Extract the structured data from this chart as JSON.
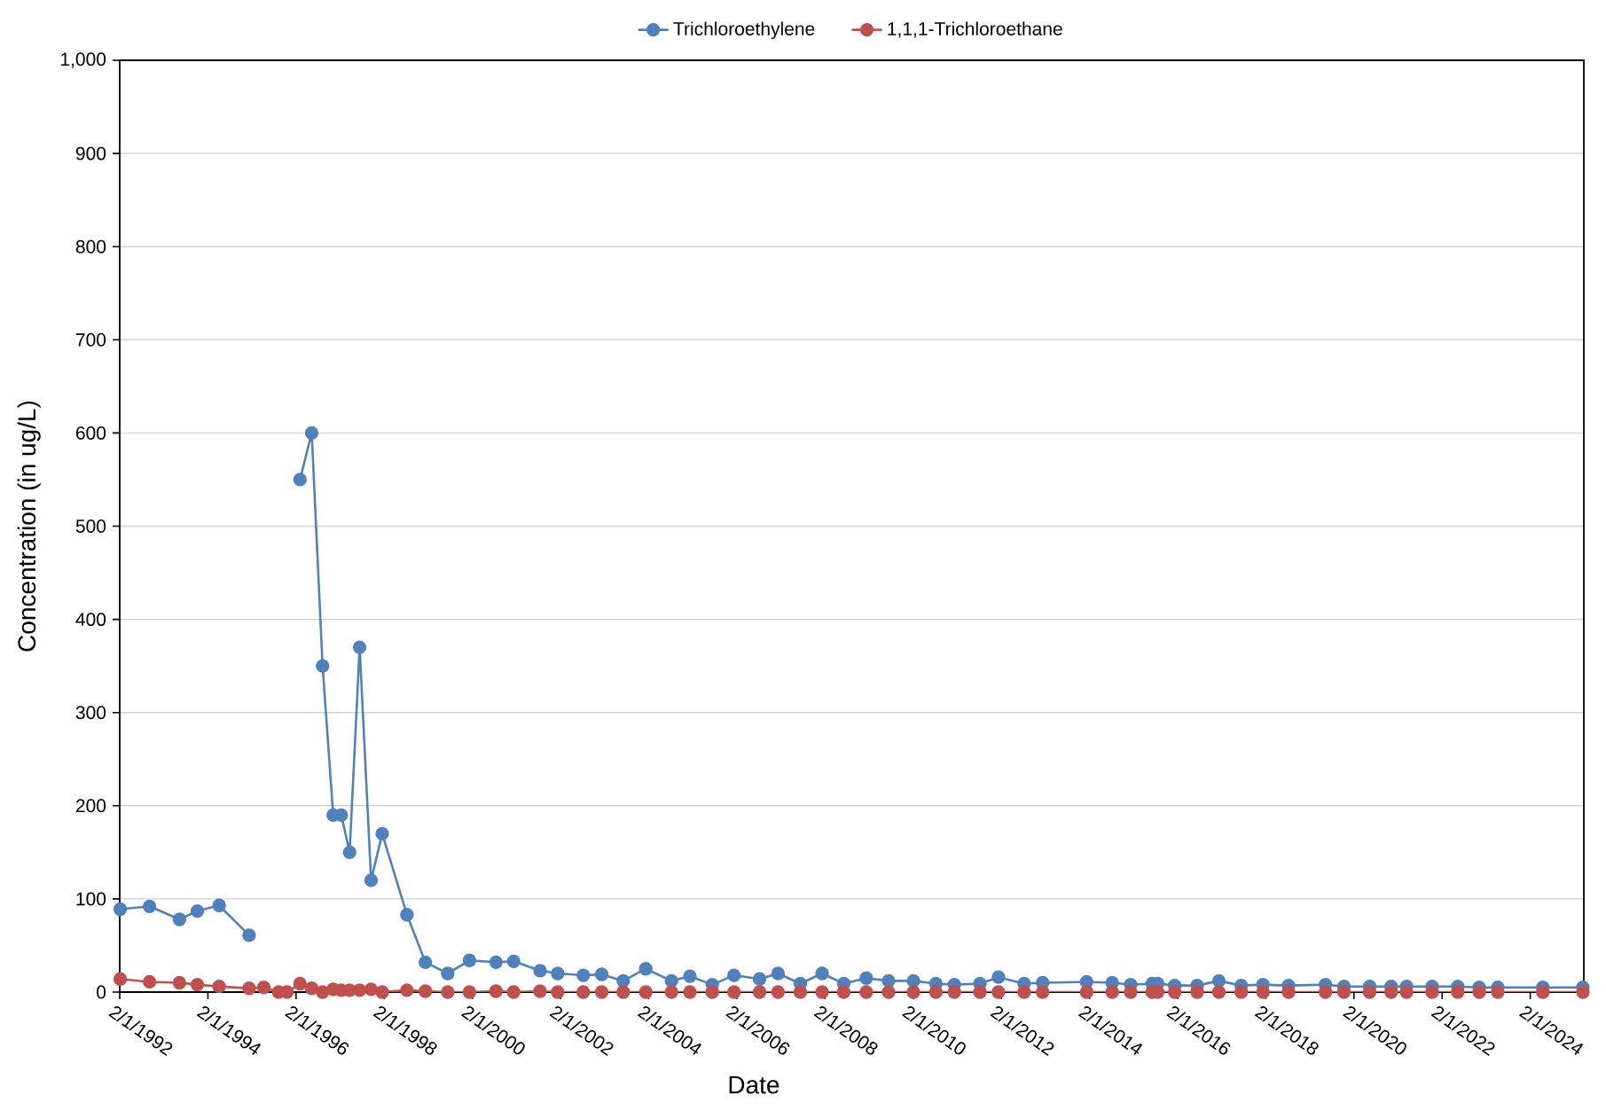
{
  "chart_data": {
    "type": "line",
    "xlabel": "Date",
    "ylabel": "Concentration (in ug/L)",
    "xlim": [
      "1992-02-01",
      "2025-04-20"
    ],
    "xticks": [
      {
        "value": "1992-02-01",
        "label": "2/1/1992"
      },
      {
        "value": "1994-02-01",
        "label": "2/1/1994"
      },
      {
        "value": "1996-02-01",
        "label": "2/1/1996"
      },
      {
        "value": "1998-02-01",
        "label": "2/1/1998"
      },
      {
        "value": "2000-02-01",
        "label": "2/1/2000"
      },
      {
        "value": "2002-02-01",
        "label": "2/1/2002"
      },
      {
        "value": "2004-02-01",
        "label": "2/1/2004"
      },
      {
        "value": "2006-02-01",
        "label": "2/1/2006"
      },
      {
        "value": "2008-02-01",
        "label": "2/1/2008"
      },
      {
        "value": "2010-02-01",
        "label": "2/1/2010"
      },
      {
        "value": "2012-02-01",
        "label": "2/1/2012"
      },
      {
        "value": "2014-02-01",
        "label": "2/1/2014"
      },
      {
        "value": "2016-02-01",
        "label": "2/1/2016"
      },
      {
        "value": "2018-02-01",
        "label": "2/1/2018"
      },
      {
        "value": "2020-02-01",
        "label": "2/1/2020"
      },
      {
        "value": "2022-02-01",
        "label": "2/1/2022"
      },
      {
        "value": "2024-02-01",
        "label": "2/1/2024"
      }
    ],
    "ylim": [
      0,
      1000
    ],
    "yticks": [
      0,
      100,
      200,
      300,
      400,
      500,
      600,
      700,
      800,
      900,
      {
        "value": 1000,
        "label": "1,000"
      }
    ],
    "grid": "y",
    "legend": "top",
    "marker": "circle",
    "line_style": "solid",
    "series": [
      {
        "name": "Trichloroethylene",
        "color": "#4f81bd",
        "x": [
          "1992-02-05",
          "1992-10-05",
          "1993-06-10",
          "1993-11-05",
          "1994-05-05",
          "1995-01-08",
          "1995-01-20",
          "1996-02-15",
          "1996-03-05",
          "1996-06-10",
          "1996-09-08",
          "1996-12-05",
          "1997-02-10",
          "1997-04-20",
          "1997-07-12",
          "1997-10-15",
          "1998-01-15",
          "1998-08-08",
          "1999-01-08",
          "1999-07-12",
          "2000-01-08",
          "2000-08-15",
          "2001-01-08",
          "2001-08-15",
          "2002-01-08",
          "2002-08-08",
          "2003-01-08",
          "2003-07-05",
          "2004-01-08",
          "2004-08-08",
          "2005-01-08",
          "2005-07-12",
          "2006-01-08",
          "2006-08-08",
          "2007-01-08",
          "2007-07-12",
          "2008-01-08",
          "2008-07-05",
          "2009-01-08",
          "2009-07-12",
          "2010-02-03",
          "2010-08-08",
          "2011-01-08",
          "2011-08-08",
          "2012-01-08",
          "2012-08-08",
          "2013-01-08",
          "2014-01-08",
          "2014-08-08",
          "2015-01-08",
          "2015-07-05",
          "2015-08-20",
          "2016-01-08",
          "2016-07-12",
          "2017-01-08",
          "2017-07-12",
          "2018-01-08",
          "2018-08-08",
          "2019-06-10",
          "2019-11-10",
          "2020-06-10",
          "2020-12-05",
          "2021-04-12",
          "2021-11-10",
          "2022-06-10",
          "2022-12-05",
          "2023-05-08",
          "2024-05-15",
          "2025-04-12"
        ],
        "values": [
          89,
          92,
          78,
          87,
          93,
          61,
          null,
          null,
          550,
          600,
          350,
          190,
          190,
          150,
          370,
          120,
          170,
          83,
          32,
          20,
          34,
          32,
          33,
          23,
          20,
          18,
          19,
          12,
          25,
          12,
          17,
          8,
          18,
          14,
          20,
          9,
          20,
          9,
          15,
          12,
          12,
          9,
          8,
          9,
          16,
          9,
          10,
          11,
          10,
          8,
          9,
          9,
          7,
          7,
          12,
          7,
          8,
          7,
          8,
          6,
          6,
          6,
          6,
          6,
          6,
          5,
          5,
          5,
          5
        ]
      },
      {
        "name": "1,1,1-Trichloroethane",
        "color": "#c0504d",
        "x": [
          "1992-02-05",
          "1992-10-05",
          "1993-06-10",
          "1993-11-05",
          "1994-05-05",
          "1995-01-08",
          "1995-05-10",
          "1995-09-10",
          "1995-11-18",
          "1996-03-05",
          "1996-06-10",
          "1996-09-08",
          "1996-12-05",
          "1997-02-10",
          "1997-04-20",
          "1997-07-12",
          "1997-10-15",
          "1998-01-15",
          "1998-08-08",
          "1999-01-08",
          "1999-07-12",
          "2000-01-08",
          "2000-08-15",
          "2001-01-08",
          "2001-08-15",
          "2002-01-08",
          "2002-08-08",
          "2003-01-08",
          "2003-07-05",
          "2004-01-08",
          "2004-08-08",
          "2005-01-08",
          "2005-07-12",
          "2006-01-08",
          "2006-08-08",
          "2007-01-08",
          "2007-07-12",
          "2008-01-08",
          "2008-07-05",
          "2009-01-08",
          "2009-07-12",
          "2010-02-03",
          "2010-08-08",
          "2011-01-08",
          "2011-08-08",
          "2012-01-08",
          "2012-08-08",
          "2013-01-08",
          "2014-01-08",
          "2014-08-08",
          "2015-01-08",
          "2015-07-05",
          "2015-08-20",
          "2016-01-08",
          "2016-07-12",
          "2017-01-08",
          "2017-07-12",
          "2018-01-08",
          "2018-08-08",
          "2019-06-10",
          "2019-11-10",
          "2020-06-10",
          "2020-12-05",
          "2021-04-12",
          "2021-11-10",
          "2022-06-10",
          "2022-12-05",
          "2023-05-08",
          "2024-05-15",
          "2025-04-12"
        ],
        "values": [
          14,
          11,
          10,
          8,
          6,
          4,
          5,
          0,
          0,
          9,
          4,
          0,
          3,
          2,
          2,
          2,
          3,
          0,
          2,
          1,
          0,
          0,
          1,
          0,
          1,
          0,
          0,
          0,
          0,
          0,
          0,
          0,
          0,
          0,
          0,
          0,
          0,
          0,
          0,
          0,
          0,
          0,
          0,
          0,
          0,
          0,
          0,
          0,
          0,
          0,
          0,
          0,
          0,
          0,
          0,
          0,
          0,
          0,
          0,
          0,
          0,
          0,
          0,
          0,
          0,
          0,
          0,
          0,
          0,
          0
        ]
      }
    ]
  }
}
